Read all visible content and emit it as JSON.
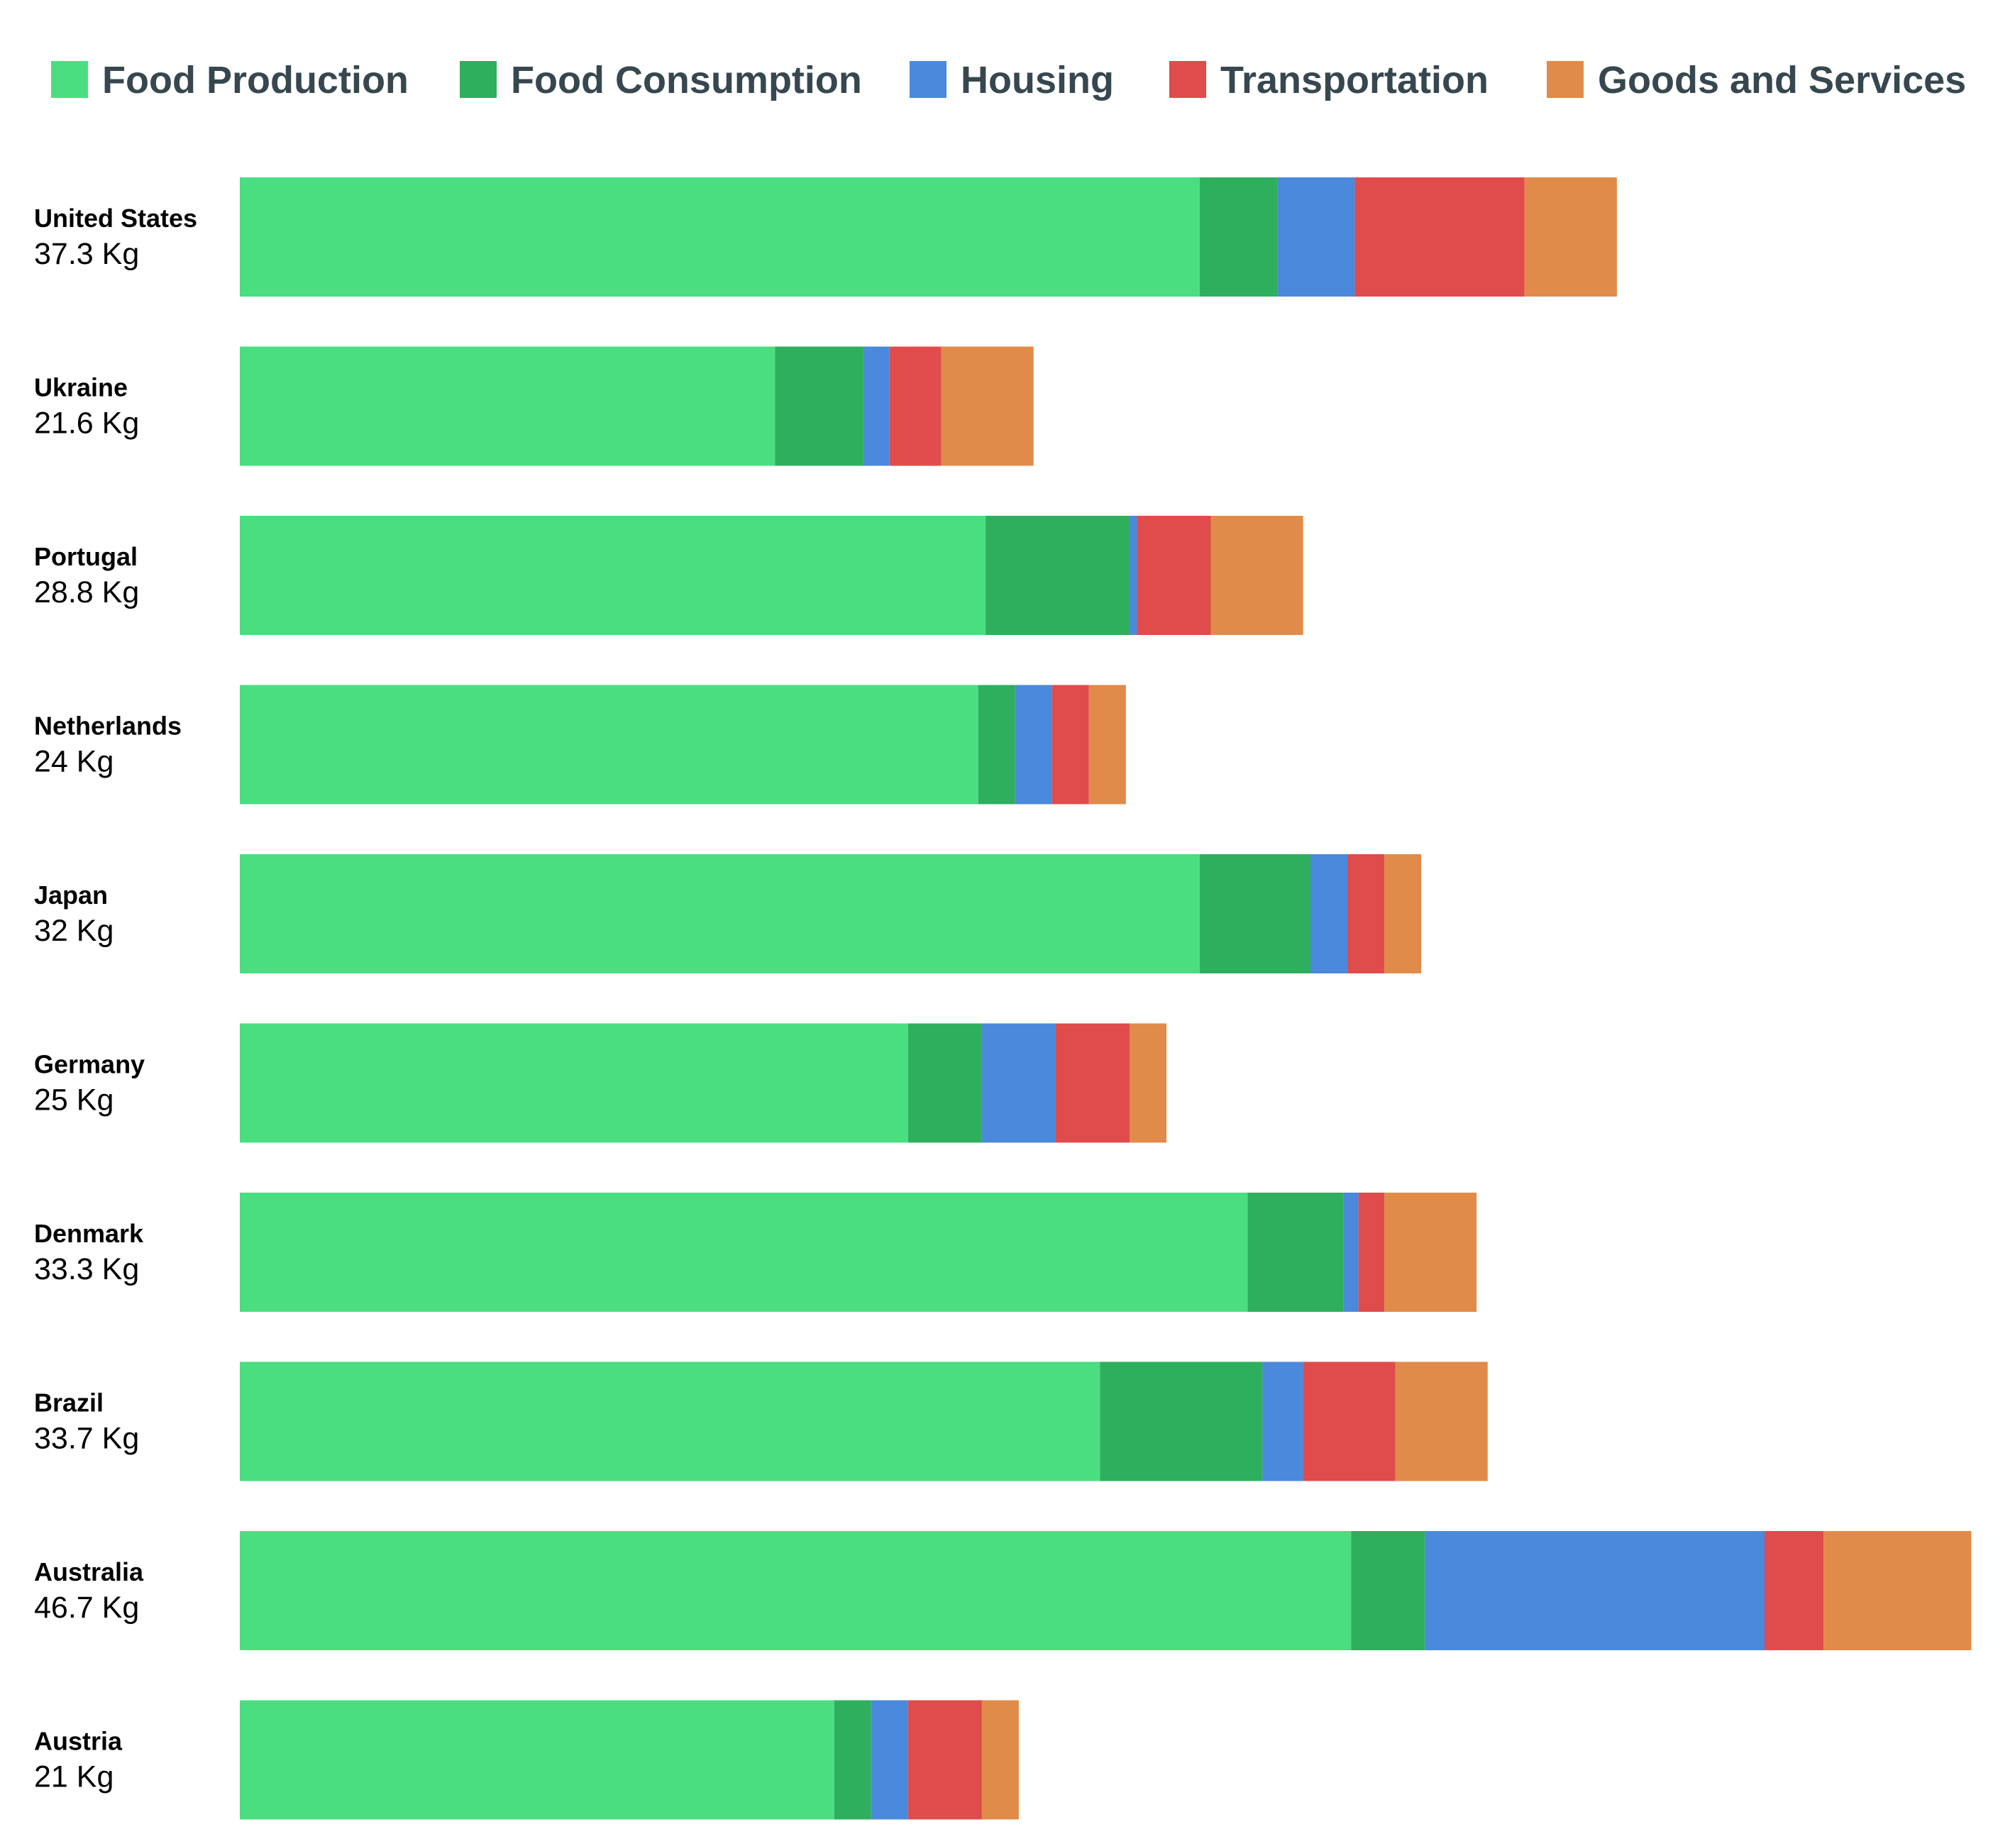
{
  "chart_data": {
    "type": "bar",
    "orientation": "horizontal",
    "stacked": true,
    "grid": false,
    "legend_position": "top",
    "xlim": [
      0,
      46.7
    ],
    "categories": [
      "United States",
      "Ukraine",
      "Portugal",
      "Netherlands",
      "Japan",
      "Germany",
      "Denmark",
      "Brazil",
      "Australia",
      "Austria"
    ],
    "totals": [
      "37.3 Kg",
      "21.6 Kg",
      "28.8 Kg",
      "24 Kg",
      "32 Kg",
      "25 Kg",
      "33.3 Kg",
      "33.7 Kg",
      "46.7 Kg",
      "21 Kg"
    ],
    "series": [
      {
        "name": "Food Production",
        "color": "#4ade80",
        "values": [
          26.0,
          14.5,
          20.2,
          20.0,
          26.0,
          18.1,
          27.3,
          23.3,
          30.1,
          16.1
        ]
      },
      {
        "name": "Food Consumption",
        "color": "#2eaf5d",
        "values": [
          2.1,
          2.4,
          3.9,
          1.0,
          3.0,
          2.0,
          2.6,
          4.4,
          2.0,
          1.0
        ]
      },
      {
        "name": "Housing",
        "color": "#4a89dc",
        "values": [
          2.1,
          0.7,
          0.2,
          1.0,
          1.0,
          2.0,
          0.4,
          1.1,
          9.2,
          1.0
        ]
      },
      {
        "name": "Transportation",
        "color": "#e04b4b",
        "values": [
          4.6,
          1.4,
          2.0,
          1.0,
          1.0,
          2.0,
          0.7,
          2.5,
          1.6,
          2.0
        ]
      },
      {
        "name": "Goods and Services",
        "color": "#e08b4a",
        "values": [
          2.5,
          2.5,
          2.5,
          1.0,
          1.0,
          1.0,
          2.5,
          2.5,
          4.0,
          1.0
        ]
      }
    ]
  }
}
